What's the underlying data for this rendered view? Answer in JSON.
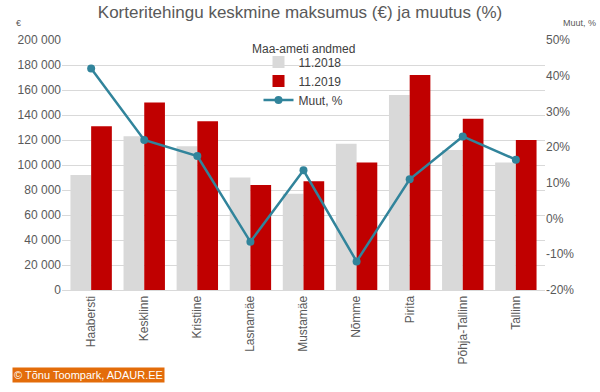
{
  "chart_data": {
    "type": "bar",
    "title": "Korteritehingu keskmine maksumus (€) ja muutus (%)",
    "subtitle": "Maa-ameti andmed",
    "y_label": "€",
    "y2_label": "Muut, %",
    "annotations": [
      "© Tõnu Toompark, ADAUR.EE"
    ],
    "categories": [
      "Haabersti",
      "Kesklinn",
      "Kristiine",
      "Lasnamäe",
      "Mustamäe",
      "Nõmme",
      "Pirita",
      "Põhja-Tallinn",
      "Tallinn"
    ],
    "series": [
      {
        "name": "11.2018",
        "type": "bar",
        "color": "#d9d9d9",
        "values": [
          92000,
          123000,
          115000,
          90000,
          77000,
          117000,
          156000,
          112000,
          102000
        ]
      },
      {
        "name": "11.2019",
        "type": "bar",
        "color": "#c00000",
        "values": [
          131000,
          150000,
          135000,
          84000,
          87000,
          102000,
          172000,
          137000,
          120000
        ]
      },
      {
        "name": "Muut, %",
        "type": "line",
        "axis": "y2",
        "color": "#31849b",
        "marker": "circle",
        "values": [
          42,
          22,
          17.5,
          -6.5,
          13.5,
          -12,
          11,
          23,
          16.5
        ]
      }
    ],
    "ylim": [
      0,
      200000
    ],
    "yticks": [
      0,
      {
        "value": 20000,
        "label": "20 000"
      },
      {
        "value": 40000,
        "label": "40 000"
      },
      {
        "value": 60000,
        "label": "60 000"
      },
      {
        "value": 80000,
        "label": "80 000"
      },
      {
        "value": 100000,
        "label": "100 000"
      },
      {
        "value": 120000,
        "label": "120 000"
      },
      {
        "value": 140000,
        "label": "140 000"
      },
      {
        "value": 160000,
        "label": "160 000"
      },
      {
        "value": 180000,
        "label": "180 000"
      },
      {
        "value": 200000,
        "label": "200 000"
      }
    ],
    "y2lim": [
      -20,
      50
    ],
    "y2ticks": [
      {
        "value": -20,
        "label": "-20%"
      },
      {
        "value": -10,
        "label": "-10%"
      },
      {
        "value": 0,
        "label": "0%"
      },
      {
        "value": 10,
        "label": "10%"
      },
      {
        "value": 20,
        "label": "20%"
      },
      {
        "value": 30,
        "label": "30%"
      },
      {
        "value": 40,
        "label": "40%"
      },
      {
        "value": 50,
        "label": "50%"
      }
    ],
    "grid": true,
    "legend": "top"
  }
}
